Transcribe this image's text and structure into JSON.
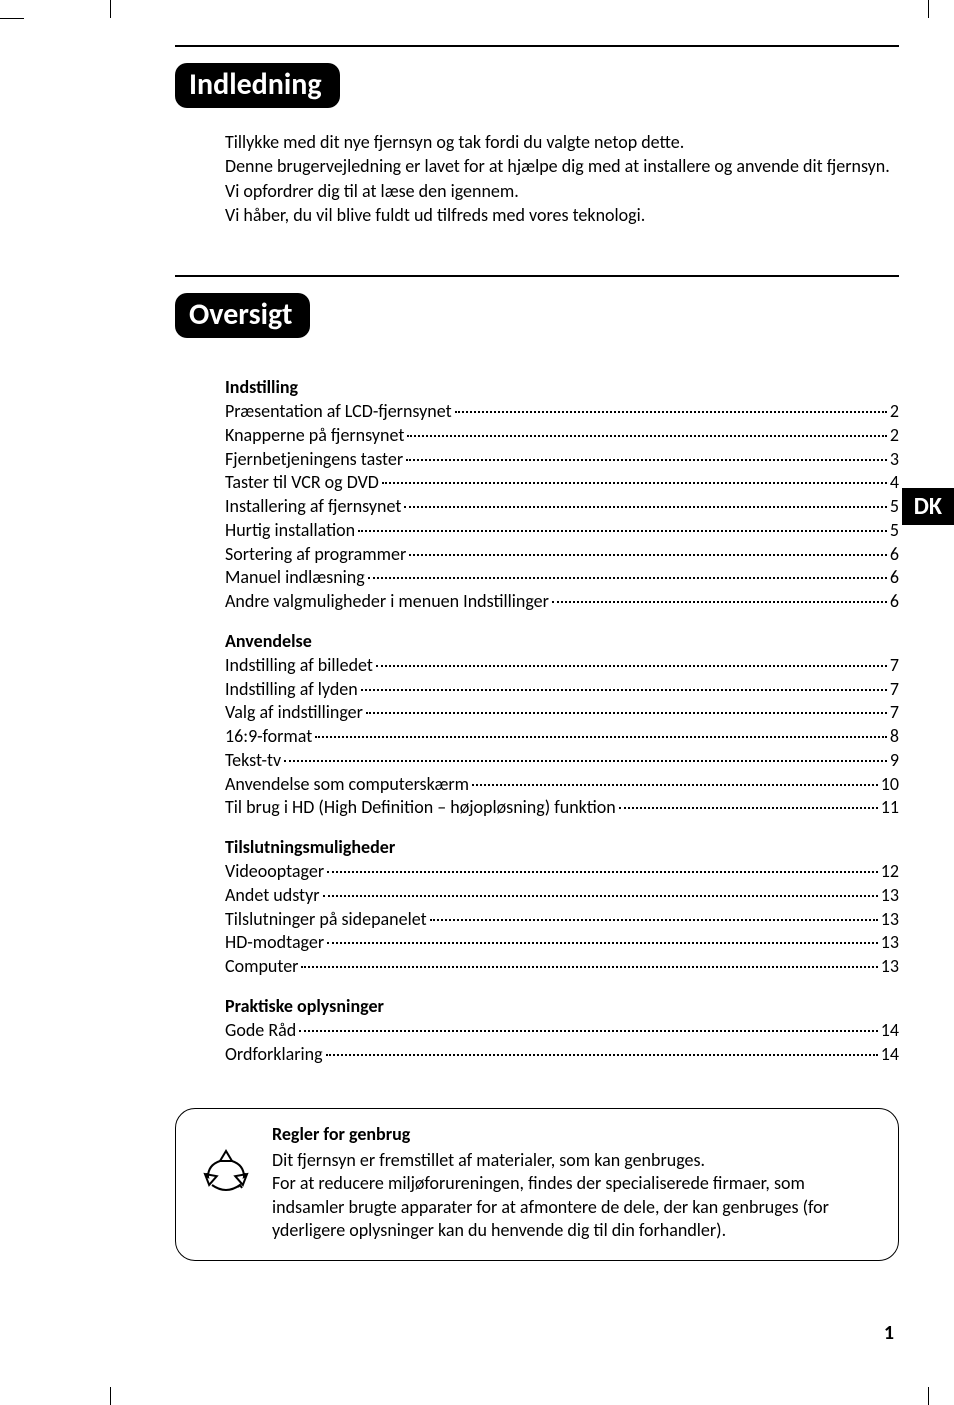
{
  "lang_tab": "DK",
  "page_number": "1",
  "sections": {
    "intro_header": "Indledning",
    "intro_lines": [
      "Tillykke med dit nye fjernsyn og tak fordi du valgte netop dette.",
      "Denne brugervejledning er lavet for at hjælpe dig med at installere og anvende dit fjernsyn.",
      "Vi opfordrer dig til at læse den igennem.",
      "Vi håber, du vil blive fuldt ud tilfreds med vores teknologi."
    ],
    "toc_header": "Oversigt",
    "toc_groups": [
      {
        "title": "Indstilling",
        "items": [
          {
            "label": "Præsentation af LCD-fjernsynet",
            "page": "2"
          },
          {
            "label": "Knapperne på fjernsynet",
            "page": "2"
          },
          {
            "label": "Fjernbetjeningens taster",
            "page": "3"
          },
          {
            "label": "Taster til VCR og DVD",
            "page": "4"
          },
          {
            "label": "Installering af fjernsynet",
            "page": "5"
          },
          {
            "label": "Hurtig installation",
            "page": "5"
          },
          {
            "label": "Sortering af programmer",
            "page": "6"
          },
          {
            "label": "Manuel indlæsning",
            "page": "6"
          },
          {
            "label": "Andre valgmuligheder i menuen Indstillinger",
            "page": "6"
          }
        ]
      },
      {
        "title": "Anvendelse",
        "items": [
          {
            "label": "Indstilling af billedet",
            "page": "7"
          },
          {
            "label": "Indstilling af lyden",
            "page": "7"
          },
          {
            "label": "Valg af indstillinger",
            "page": "7"
          },
          {
            "label": "16:9-format",
            "page": "8"
          },
          {
            "label": "Tekst-tv",
            "page": "9"
          },
          {
            "label": "Anvendelse som computerskærm",
            "page": "10"
          },
          {
            "label": "Til brug i HD (High Definition – højopløsning) funktion",
            "page": "11"
          }
        ]
      },
      {
        "title": "Tilslutningsmuligheder",
        "items": [
          {
            "label": "Videooptager",
            "page": "12"
          },
          {
            "label": "Andet udstyr",
            "page": "13"
          },
          {
            "label": "Tilslutninger på sidepanelet",
            "page": "13"
          },
          {
            "label": "HD-modtager",
            "page": "13"
          },
          {
            "label": "Computer",
            "page": "13"
          }
        ]
      },
      {
        "title": "Praktiske oplysninger",
        "items": [
          {
            "label": "Gode Råd",
            "page": "14"
          },
          {
            "label": "Ordforklaring",
            "page": "14"
          }
        ]
      }
    ]
  },
  "footer": {
    "title": "Regler for genbrug",
    "lines": [
      "Dit fjernsyn er fremstillet af materialer, som kan genbruges.",
      "For at reducere miljøforureningen, findes der specialiserede firmaer, som indsamler brugte apparater for at afmontere de dele, der kan genbruges (for yderligere oplysninger kan du henvende dig til din forhandler)."
    ]
  }
}
